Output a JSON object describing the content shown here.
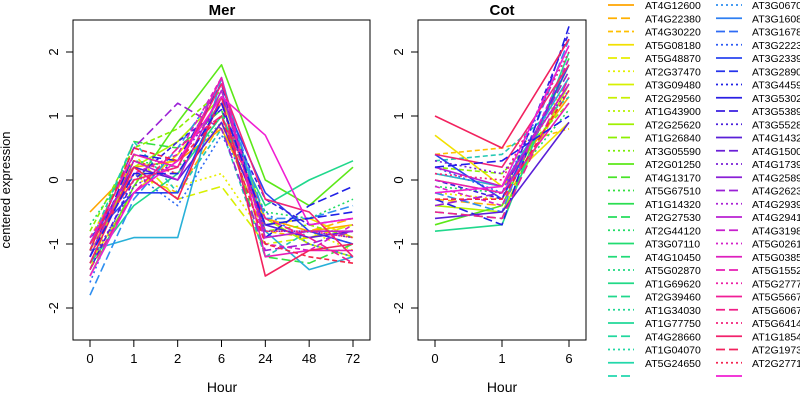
{
  "chart_data": [
    {
      "type": "line",
      "title": "Mer",
      "xlabel": "Hour",
      "ylabel": "centered expression",
      "categories": [
        "0",
        "1",
        "2",
        "6",
        "24",
        "48",
        "72"
      ],
      "yticks": [
        "-2",
        "-1",
        "0",
        "1",
        "2"
      ],
      "ylim": [
        -2.5,
        2.5
      ],
      "grid": false,
      "series": [
        {
          "color": "#FFA500",
          "dash": "solid",
          "values": [
            -0.5,
            0.2,
            0.3,
            0.8,
            -0.6,
            -0.8,
            -0.7
          ]
        },
        {
          "color": "#FFB000",
          "dash": "long",
          "values": [
            -1.1,
            0.1,
            -0.2,
            0.9,
            -0.9,
            -0.8,
            -0.6
          ]
        },
        {
          "color": "#FFC000",
          "dash": "short",
          "values": [
            -0.9,
            0.3,
            0.1,
            1.0,
            -0.8,
            -0.9,
            -0.8
          ]
        },
        {
          "color": "#F2E000",
          "dash": "solid",
          "values": [
            -1.3,
            -0.2,
            0.4,
            1.2,
            -0.7,
            -0.6,
            -0.9
          ]
        },
        {
          "color": "#E8EE00",
          "dash": "dot",
          "values": [
            -1.0,
            0.0,
            -0.1,
            0.1,
            -0.9,
            -0.8,
            -1.1
          ]
        },
        {
          "color": "#D7F000",
          "dash": "long",
          "values": [
            -1.4,
            0.4,
            -0.3,
            -0.1,
            -1.0,
            -0.9,
            -0.7
          ]
        },
        {
          "color": "#B5F200",
          "dash": "solid",
          "values": [
            -1.2,
            0.2,
            0.6,
            1.3,
            -0.6,
            -1.0,
            -1.2
          ]
        },
        {
          "color": "#8CF000",
          "dash": "short",
          "values": [
            -0.8,
            0.5,
            0.8,
            1.4,
            -0.8,
            -0.7,
            -0.9
          ]
        },
        {
          "color": "#5CE818",
          "dash": "solid",
          "values": [
            -1.5,
            -0.1,
            0.9,
            1.8,
            0.0,
            -0.4,
            0.2
          ]
        },
        {
          "color": "#33E040",
          "dash": "long",
          "values": [
            -1.1,
            0.6,
            0.5,
            1.1,
            -1.2,
            -1.3,
            -1.0
          ]
        },
        {
          "color": "#22DD66",
          "dash": "dot",
          "values": [
            -0.7,
            0.3,
            0.2,
            0.9,
            -0.5,
            -0.6,
            -0.3
          ]
        },
        {
          "color": "#20D88C",
          "dash": "solid",
          "values": [
            -1.3,
            -0.4,
            0.1,
            1.0,
            -0.4,
            0.0,
            0.3
          ]
        },
        {
          "color": "#22C8B4",
          "dash": "short",
          "values": [
            -1.0,
            0.6,
            -0.2,
            0.8,
            -1.2,
            -0.8,
            -1.0
          ]
        },
        {
          "color": "#28B0D8",
          "dash": "solid",
          "values": [
            -1.1,
            -0.9,
            -0.9,
            1.6,
            -0.8,
            -1.4,
            -1.2
          ]
        },
        {
          "color": "#2F8FF0",
          "dash": "long",
          "values": [
            -1.8,
            -0.3,
            0.5,
            1.5,
            -0.6,
            -0.6,
            -0.4
          ]
        },
        {
          "color": "#2E6BF5",
          "dash": "dot",
          "values": [
            -1.6,
            0.1,
            -0.4,
            0.7,
            -0.5,
            -1.0,
            -1.2
          ]
        },
        {
          "color": "#2A44F0",
          "dash": "solid",
          "values": [
            -0.9,
            -0.2,
            -0.2,
            1.3,
            -0.2,
            -0.8,
            -1.0
          ]
        },
        {
          "color": "#2020E6",
          "dash": "long",
          "values": [
            -1.2,
            0.4,
            0.3,
            1.5,
            -0.9,
            -0.4,
            -0.1
          ]
        },
        {
          "color": "#3A1FE0",
          "dash": "short",
          "values": [
            -1.4,
            0.0,
            0.6,
            1.1,
            -0.3,
            -0.7,
            -0.6
          ]
        },
        {
          "color": "#5A1FD8",
          "dash": "solid",
          "values": [
            -1.0,
            0.2,
            0.0,
            0.9,
            -0.7,
            -0.9,
            -0.8
          ]
        },
        {
          "color": "#7A1FD6",
          "dash": "dot",
          "values": [
            -1.3,
            -0.1,
            0.3,
            1.2,
            -0.8,
            -0.8,
            -0.9
          ]
        },
        {
          "color": "#9B20D6",
          "dash": "long",
          "values": [
            -1.1,
            0.5,
            1.2,
            0.8,
            -1.1,
            -1.0,
            -0.8
          ]
        },
        {
          "color": "#BA20D2",
          "dash": "solid",
          "values": [
            -1.2,
            0.3,
            0.0,
            1.4,
            -0.9,
            -0.8,
            -0.8
          ]
        },
        {
          "color": "#D41FC8",
          "dash": "short",
          "values": [
            -0.9,
            0.1,
            0.4,
            1.6,
            -1.0,
            -1.1,
            -0.7
          ]
        },
        {
          "color": "#E81EB4",
          "dash": "solid",
          "values": [
            -1.0,
            0.4,
            0.2,
            1.6,
            -1.2,
            -1.1,
            -1.1
          ]
        },
        {
          "color": "#F01E96",
          "dash": "long",
          "values": [
            -1.4,
            -0.2,
            0.5,
            1.0,
            -0.6,
            -0.9,
            -1.3
          ]
        },
        {
          "color": "#F2207A",
          "dash": "dot",
          "values": [
            -1.2,
            0.3,
            0.1,
            1.2,
            -0.8,
            -0.8,
            -0.9
          ]
        },
        {
          "color": "#F2225E",
          "dash": "solid",
          "values": [
            -1.3,
            0.2,
            -0.3,
            1.3,
            -1.5,
            -1.1,
            -1.0
          ]
        },
        {
          "color": "#F42448",
          "dash": "short",
          "values": [
            -1.1,
            0.5,
            0.3,
            1.0,
            -1.0,
            -1.2,
            -1.3
          ]
        },
        {
          "color": "#F02676",
          "dash": "solid",
          "values": [
            -1.0,
            0.0,
            0.2,
            1.5,
            -0.3,
            -0.5,
            -1.2
          ]
        },
        {
          "color": "#F01ED2",
          "dash": "solid",
          "values": [
            -1.5,
            -0.2,
            0.3,
            1.3,
            0.7,
            -0.7,
            -0.6
          ]
        },
        {
          "color": "#1F1FE8",
          "dash": "long",
          "values": [
            -1.2,
            0.1,
            0.1,
            1.2,
            -0.7,
            -0.6,
            -0.5
          ]
        }
      ]
    },
    {
      "type": "line",
      "title": "Cot",
      "xlabel": "Hour",
      "ylabel": "",
      "categories": [
        "0",
        "1",
        "6"
      ],
      "yticks": [
        "-2",
        "-1",
        "0",
        "1",
        "2"
      ],
      "ylim": [
        -2.5,
        2.5
      ],
      "grid": false,
      "series": [
        {
          "color": "#FFA500",
          "dash": "solid",
          "values": [
            0.1,
            -0.1,
            1.3
          ]
        },
        {
          "color": "#FFB000",
          "dash": "long",
          "values": [
            -0.3,
            -0.4,
            1.4
          ]
        },
        {
          "color": "#FFC000",
          "dash": "short",
          "values": [
            0.4,
            0.5,
            0.8
          ]
        },
        {
          "color": "#F2E000",
          "dash": "solid",
          "values": [
            0.7,
            -0.1,
            0.9
          ]
        },
        {
          "color": "#E8EE00",
          "dash": "dot",
          "values": [
            -0.2,
            -0.3,
            1.6
          ]
        },
        {
          "color": "#D7F000",
          "dash": "long",
          "values": [
            0.0,
            -0.2,
            1.7
          ]
        },
        {
          "color": "#B5F200",
          "dash": "solid",
          "values": [
            -0.4,
            -0.5,
            1.5
          ]
        },
        {
          "color": "#8CF000",
          "dash": "short",
          "values": [
            0.2,
            0.1,
            1.2
          ]
        },
        {
          "color": "#5CE818",
          "dash": "solid",
          "values": [
            -0.7,
            -0.4,
            1.8
          ]
        },
        {
          "color": "#33E040",
          "dash": "long",
          "values": [
            -0.5,
            -0.6,
            1.9
          ]
        },
        {
          "color": "#22DD66",
          "dash": "dot",
          "values": [
            -0.1,
            -0.2,
            1.1
          ]
        },
        {
          "color": "#20D88C",
          "dash": "solid",
          "values": [
            -0.8,
            -0.7,
            2.0
          ]
        },
        {
          "color": "#22C8B4",
          "dash": "short",
          "values": [
            0.3,
            0.4,
            1.3
          ]
        },
        {
          "color": "#28B0D8",
          "dash": "solid",
          "values": [
            0.1,
            -0.1,
            1.6
          ]
        },
        {
          "color": "#2F8FF0",
          "dash": "long",
          "values": [
            -0.2,
            -0.5,
            2.2
          ]
        },
        {
          "color": "#2E6BF5",
          "dash": "dot",
          "values": [
            0.2,
            -0.2,
            2.1
          ]
        },
        {
          "color": "#2A44F0",
          "dash": "solid",
          "values": [
            0.4,
            -0.3,
            1.8
          ]
        },
        {
          "color": "#2020E6",
          "dash": "long",
          "values": [
            -0.3,
            -0.7,
            2.4
          ]
        },
        {
          "color": "#3A1FE0",
          "dash": "short",
          "values": [
            0.0,
            -0.3,
            2.3
          ]
        },
        {
          "color": "#5A1FD8",
          "dash": "solid",
          "values": [
            -0.6,
            -0.5,
            0.9
          ]
        },
        {
          "color": "#7A1FD6",
          "dash": "dot",
          "values": [
            0.3,
            0.1,
            1.4
          ]
        },
        {
          "color": "#9B20D6",
          "dash": "long",
          "values": [
            -0.4,
            -0.2,
            1.7
          ]
        },
        {
          "color": "#BA20D2",
          "dash": "solid",
          "values": [
            0.2,
            -0.1,
            1.5
          ]
        },
        {
          "color": "#D41FC8",
          "dash": "short",
          "values": [
            -0.1,
            -0.4,
            1.9
          ]
        },
        {
          "color": "#E81EB4",
          "dash": "solid",
          "values": [
            0.0,
            -0.2,
            1.2
          ]
        },
        {
          "color": "#F01E96",
          "dash": "long",
          "values": [
            -0.5,
            -0.6,
            1.6
          ]
        },
        {
          "color": "#F2207A",
          "dash": "dot",
          "values": [
            0.1,
            0.0,
            2.0
          ]
        },
        {
          "color": "#F2225E",
          "dash": "solid",
          "values": [
            1.0,
            0.5,
            2.2
          ]
        },
        {
          "color": "#F42448",
          "dash": "short",
          "values": [
            -0.3,
            -0.3,
            1.4
          ]
        },
        {
          "color": "#F02676",
          "dash": "solid",
          "values": [
            0.4,
            0.2,
            1.8
          ]
        },
        {
          "color": "#F01ED2",
          "dash": "solid",
          "values": [
            -0.2,
            -0.1,
            2.1
          ]
        },
        {
          "color": "#1F1FE8",
          "dash": "long",
          "values": [
            0.2,
            0.3,
            1.0
          ]
        }
      ]
    }
  ],
  "legend": {
    "placement": "right",
    "left_column": [
      {
        "label": "AT4G12600",
        "color": "#FFA500",
        "dash": "solid"
      },
      {
        "label": "AT4G22380",
        "color": "#FFB000",
        "dash": "long"
      },
      {
        "label": "AT4G30220",
        "color": "#FFC000",
        "dash": "short"
      },
      {
        "label": "AT5G08180",
        "color": "#F2E000",
        "dash": "solid"
      },
      {
        "label": "AT5G48870",
        "color": "#E8EE00",
        "dash": "long"
      },
      {
        "label": "AT2G37470",
        "color": "#E3F000",
        "dash": "dot"
      },
      {
        "label": "AT3G09480",
        "color": "#D7F000",
        "dash": "solid"
      },
      {
        "label": "AT2G29560",
        "color": "#C8F000",
        "dash": "long"
      },
      {
        "label": "AT1G43900",
        "color": "#B5F200",
        "dash": "dot"
      },
      {
        "label": "AT2G25620",
        "color": "#A0F000",
        "dash": "solid"
      },
      {
        "label": "AT1G26840",
        "color": "#8CF000",
        "dash": "long"
      },
      {
        "label": "AT3G05590",
        "color": "#78EE08",
        "dash": "dot"
      },
      {
        "label": "AT2G01250",
        "color": "#5CE818",
        "dash": "solid"
      },
      {
        "label": "AT4G13170",
        "color": "#48E428",
        "dash": "long"
      },
      {
        "label": "AT5G67510",
        "color": "#33E040",
        "dash": "dot"
      },
      {
        "label": "AT1G14320",
        "color": "#2ADE50",
        "dash": "solid"
      },
      {
        "label": "AT2G27530",
        "color": "#26DD5C",
        "dash": "long"
      },
      {
        "label": "AT2G44120",
        "color": "#22DD66",
        "dash": "dot"
      },
      {
        "label": "AT3G07110",
        "color": "#20DC70",
        "dash": "solid"
      },
      {
        "label": "AT4G10450",
        "color": "#20DB78",
        "dash": "long"
      },
      {
        "label": "AT5G02870",
        "color": "#20DA80",
        "dash": "dot"
      },
      {
        "label": "AT1G69620",
        "color": "#20D986",
        "dash": "solid"
      },
      {
        "label": "AT2G39460",
        "color": "#20D88C",
        "dash": "long"
      },
      {
        "label": "AT1G34030",
        "color": "#20D892",
        "dash": "dot"
      },
      {
        "label": "AT1G77750",
        "color": "#20D898",
        "dash": "solid"
      },
      {
        "label": "AT4G28660",
        "color": "#20D89E",
        "dash": "long"
      },
      {
        "label": "AT1G04070",
        "color": "#20D8A4",
        "dash": "dot"
      },
      {
        "label": "AT5G24650",
        "color": "#22D8AA",
        "dash": "solid"
      },
      {
        "label": "",
        "color": "#22D8AE",
        "dash": "long"
      }
    ],
    "right_column": [
      {
        "label": "AT3G0670",
        "color": "#2F8FF0",
        "dash": "dot"
      },
      {
        "label": "AT3G1608",
        "color": "#2E7FF2",
        "dash": "solid"
      },
      {
        "label": "AT3G1678",
        "color": "#2E6BF5",
        "dash": "long"
      },
      {
        "label": "AT3G2223",
        "color": "#2C5AF4",
        "dash": "dot"
      },
      {
        "label": "AT3G2339",
        "color": "#2A44F0",
        "dash": "solid"
      },
      {
        "label": "AT3G2890",
        "color": "#2533EC",
        "dash": "long"
      },
      {
        "label": "AT3G4459",
        "color": "#2020E6",
        "dash": "dot"
      },
      {
        "label": "AT3G5302",
        "color": "#2A1FE4",
        "dash": "solid"
      },
      {
        "label": "AT3G5389",
        "color": "#3A1FE0",
        "dash": "long"
      },
      {
        "label": "AT3G5528",
        "color": "#4A1FDC",
        "dash": "dot"
      },
      {
        "label": "AT4G1432",
        "color": "#5A1FD8",
        "dash": "solid"
      },
      {
        "label": "AT4G1500",
        "color": "#6A1FD7",
        "dash": "long"
      },
      {
        "label": "AT4G1739",
        "color": "#7A1FD6",
        "dash": "dot"
      },
      {
        "label": "AT4G2589",
        "color": "#8A1FD6",
        "dash": "solid"
      },
      {
        "label": "AT4G2623",
        "color": "#9B20D6",
        "dash": "long"
      },
      {
        "label": "AT4G2939",
        "color": "#AA20D4",
        "dash": "dot"
      },
      {
        "label": "AT4G2941",
        "color": "#BA20D2",
        "dash": "solid"
      },
      {
        "label": "AT4G3198",
        "color": "#C81FCD",
        "dash": "long"
      },
      {
        "label": "AT5G0261",
        "color": "#D41FC8",
        "dash": "dot"
      },
      {
        "label": "AT5G0385",
        "color": "#DE1FBE",
        "dash": "solid"
      },
      {
        "label": "AT5G1552",
        "color": "#E81EB4",
        "dash": "long"
      },
      {
        "label": "AT5G2777",
        "color": "#EC1EA5",
        "dash": "dot"
      },
      {
        "label": "AT5G5667",
        "color": "#F01E96",
        "dash": "solid"
      },
      {
        "label": "AT5G6067",
        "color": "#F11F88",
        "dash": "long"
      },
      {
        "label": "AT5G6414",
        "color": "#F2207A",
        "dash": "dot"
      },
      {
        "label": "AT1G1854",
        "color": "#F2216C",
        "dash": "solid"
      },
      {
        "label": "AT2G1973",
        "color": "#F2225E",
        "dash": "long"
      },
      {
        "label": "AT2G2771",
        "color": "#F42452",
        "dash": "dot"
      },
      {
        "label": "",
        "color": "#F01ED2",
        "dash": "solid"
      }
    ]
  }
}
